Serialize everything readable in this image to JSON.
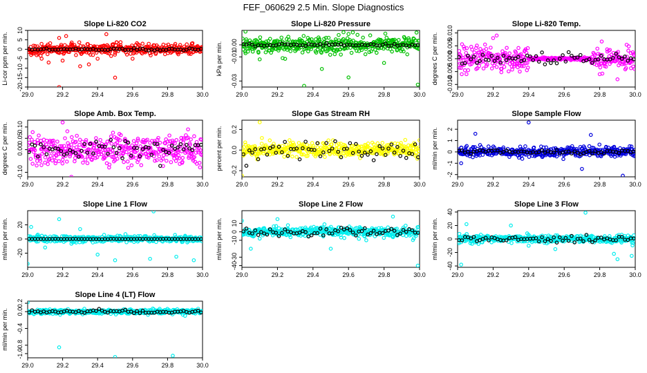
{
  "page_title": "FEF_060629  2.5 Min. Slope Diagnostics",
  "chart_data": [
    {
      "type": "scatter",
      "title": "Slope Li-820 CO2",
      "ylabel": "Li-cor ppm per min.",
      "color": "#ff0000",
      "xlim": [
        29.0,
        30.0
      ],
      "ylim": [
        -20,
        10
      ],
      "xticks": [
        "29.0",
        "29.2",
        "29.4",
        "29.6",
        "29.8",
        "30.0"
      ],
      "yticks": [
        {
          "v": -20,
          "l": "-20"
        },
        {
          "v": -15,
          "l": "-15"
        },
        {
          "v": -10,
          "l": "-10"
        },
        {
          "v": -5,
          "l": "-5"
        },
        {
          "v": 0,
          "l": "0"
        },
        {
          "v": 5,
          "l": "5"
        },
        {
          "v": 10,
          "l": "10"
        }
      ],
      "spread": 2.5,
      "outliers": [
        [
          29.02,
          -3
        ],
        [
          29.08,
          -5
        ],
        [
          29.12,
          -7
        ],
        [
          29.18,
          6
        ],
        [
          29.22,
          7
        ],
        [
          29.18,
          -20
        ],
        [
          29.4,
          -5
        ],
        [
          29.5,
          -15
        ],
        [
          29.45,
          8
        ],
        [
          29.3,
          -9
        ],
        [
          29.35,
          -8
        ],
        [
          29.6,
          -5
        ],
        [
          29.2,
          -6
        ]
      ],
      "black_spread": 0.5
    },
    {
      "type": "scatter",
      "title": "Slope Li-820 Pressure",
      "ylabel": "kPa per min.",
      "color": "#00c000",
      "xlim": [
        29.0,
        30.0
      ],
      "ylim": [
        -0.035,
        0.012
      ],
      "xticks": [
        "29.0",
        "29.2",
        "29.4",
        "29.6",
        "29.8",
        "30.0"
      ],
      "yticks": [
        {
          "v": -0.03,
          "l": "-0.03"
        },
        {
          "v": -0.01,
          "l": "-0.01"
        },
        {
          "v": 0.0,
          "l": "0.00"
        }
      ],
      "spread": 0.006,
      "outliers": [
        [
          29.35,
          -0.034
        ],
        [
          29.99,
          -0.033
        ],
        [
          29.6,
          0.009
        ],
        [
          29.02,
          0.011
        ],
        [
          29.6,
          -0.027
        ],
        [
          29.1,
          -0.012
        ],
        [
          29.45,
          -0.02
        ],
        [
          29.8,
          -0.015
        ]
      ],
      "black_spread": 0.001
    },
    {
      "type": "scatter",
      "title": "Slope Li-820 Temp.",
      "ylabel": "degrees C per min.",
      "color": "#ff00ff",
      "xlim": [
        29.0,
        30.0
      ],
      "ylim": [
        -0.011,
        0.011
      ],
      "xticks": [
        "29.0",
        "29.2",
        "29.4",
        "29.6",
        "29.8",
        "30.0"
      ],
      "yticks": [
        {
          "v": -0.01,
          "l": "-0.010"
        },
        {
          "v": -0.005,
          "l": "-0.005"
        },
        {
          "v": 0.0,
          "l": "0.000"
        },
        {
          "v": 0.005,
          "l": "0.005"
        },
        {
          "v": 0.01,
          "l": "0.010"
        }
      ],
      "spread": 0.004,
      "outliers": [
        [
          29.2,
          0.008
        ],
        [
          29.22,
          0.009
        ],
        [
          29.35,
          -0.005
        ],
        [
          29.05,
          -0.006
        ],
        [
          29.8,
          -0.006
        ],
        [
          29.9,
          -0.008
        ]
      ],
      "black_spread": 0.002,
      "flat": [
        29.4,
        29.75
      ]
    },
    {
      "type": "scatter",
      "title": "Slope Amb. Box Temp.",
      "ylabel": "degrees C per min.",
      "color": "#ff00ff",
      "xlim": [
        29.0,
        30.0
      ],
      "ylim": [
        -0.12,
        0.13
      ],
      "xticks": [
        "29.0",
        "29.2",
        "29.4",
        "29.6",
        "29.8",
        "30.0"
      ],
      "yticks": [
        {
          "v": -0.1,
          "l": "-0.10"
        },
        {
          "v": 0.0,
          "l": "0.00"
        },
        {
          "v": 0.05,
          "l": "0.05"
        },
        {
          "v": 0.1,
          "l": "0.10"
        }
      ],
      "spread": 0.06,
      "outliers": [
        [
          29.2,
          0.12
        ],
        [
          29.25,
          -0.12
        ]
      ],
      "black_spread": 0.04
    },
    {
      "type": "scatter",
      "title": "Slope Gas Stream RH",
      "ylabel": "percent per min.",
      "color": "#ffff00",
      "xlim": [
        29.0,
        30.0
      ],
      "ylim": [
        -0.26,
        0.29
      ],
      "xticks": [
        "29.0",
        "29.2",
        "29.4",
        "29.6",
        "29.8",
        "30.0"
      ],
      "yticks": [
        {
          "v": -0.2,
          "l": "-0.2"
        },
        {
          "v": 0.0,
          "l": "0.0"
        },
        {
          "v": 0.2,
          "l": "0.2"
        }
      ],
      "spread": 0.06,
      "outliers": [
        [
          29.0,
          -0.25
        ],
        [
          29.1,
          0.27
        ]
      ],
      "black_spread": 0.07
    },
    {
      "type": "scatter",
      "title": "Slope Sample Flow",
      "ylabel": "ml/min per min.",
      "color": "#0000dd",
      "xlim": [
        29.0,
        30.0
      ],
      "ylim": [
        -2.2,
        2.8
      ],
      "xticks": [
        "29.0",
        "29.2",
        "29.4",
        "29.6",
        "29.8",
        "30.0"
      ],
      "yticks": [
        {
          "v": -2,
          "l": "-2"
        },
        {
          "v": -1,
          "l": "-1"
        },
        {
          "v": 0,
          "l": "0"
        },
        {
          "v": 1,
          "l": "1"
        },
        {
          "v": 2,
          "l": "2"
        }
      ],
      "spread": 0.4,
      "outliers": [
        [
          29.4,
          2.6
        ],
        [
          29.1,
          1.6
        ],
        [
          29.7,
          -1.5
        ],
        [
          29.93,
          -2.1
        ],
        [
          29.75,
          1.5
        ],
        [
          29.02,
          -1.0
        ]
      ],
      "black_spread": 0.15
    },
    {
      "type": "scatter",
      "title": "Slope Line 1 Flow",
      "ylabel": "ml/min per min.",
      "color": "#00eeee",
      "xlim": [
        29.0,
        30.0
      ],
      "ylim": [
        -40,
        40
      ],
      "xticks": [
        "29.0",
        "29.2",
        "29.4",
        "29.6",
        "29.8",
        "30.0"
      ],
      "yticks": [
        {
          "v": -20,
          "l": "-20"
        },
        {
          "v": 0,
          "l": "0"
        },
        {
          "v": 20,
          "l": "20"
        }
      ],
      "spread": 4,
      "outliers": [
        [
          29.0,
          -35
        ],
        [
          29.02,
          17
        ],
        [
          29.18,
          28
        ],
        [
          29.72,
          39
        ],
        [
          29.7,
          -28
        ],
        [
          29.5,
          -30
        ],
        [
          29.4,
          -22
        ],
        [
          29.95,
          -30
        ],
        [
          29.85,
          -25
        ],
        [
          29.3,
          14
        ],
        [
          29.1,
          -12
        ]
      ],
      "black_spread": 0.2
    },
    {
      "type": "scatter",
      "title": "Slope Line 2 Flow",
      "ylabel": "ml/min per min.",
      "color": "#00eeee",
      "xlim": [
        29.0,
        30.0
      ],
      "ylim": [
        -42,
        25
      ],
      "xticks": [
        "29.0",
        "29.2",
        "29.4",
        "29.6",
        "29.8",
        "30.0"
      ],
      "yticks": [
        {
          "v": -40,
          "l": "-40"
        },
        {
          "v": -30,
          "l": "-30"
        },
        {
          "v": -10,
          "l": "-10"
        },
        {
          "v": 0,
          "l": "0"
        },
        {
          "v": 10,
          "l": "10"
        }
      ],
      "spread": 5,
      "outliers": [
        [
          29.99,
          -40
        ],
        [
          29.05,
          -20
        ],
        [
          29.1,
          -8
        ],
        [
          29.7,
          -10
        ],
        [
          29.5,
          -20
        ],
        [
          29.2,
          15
        ],
        [
          29.85,
          18
        ],
        [
          29.0,
          13
        ]
      ],
      "black_spread": 4
    },
    {
      "type": "scatter",
      "title": "Slope Line 3 Flow",
      "ylabel": "ml/min per min.",
      "color": "#00eeee",
      "xlim": [
        29.0,
        30.0
      ],
      "ylim": [
        -42,
        42
      ],
      "xticks": [
        "29.0",
        "29.2",
        "29.4",
        "29.6",
        "29.8",
        "30.0"
      ],
      "yticks": [
        {
          "v": -40,
          "l": "-40"
        },
        {
          "v": -20,
          "l": "-20"
        },
        {
          "v": 0,
          "l": "0"
        },
        {
          "v": 20,
          "l": "20"
        },
        {
          "v": 40,
          "l": "40"
        }
      ],
      "spread": 5,
      "outliers": [
        [
          29.02,
          -38
        ],
        [
          29.05,
          22
        ],
        [
          29.72,
          39
        ],
        [
          29.9,
          -30
        ],
        [
          29.98,
          -25
        ],
        [
          29.55,
          -15
        ],
        [
          29.3,
          20
        ],
        [
          29.88,
          -22
        ],
        [
          29.4,
          -10
        ]
      ],
      "black_spread": 4
    },
    {
      "type": "scatter",
      "title": "Slope Line 4 (LT) Flow",
      "ylabel": "ml/min per min.",
      "color": "#00eeee",
      "xlim": [
        29.0,
        30.0
      ],
      "ylim": [
        -1.1,
        0.25
      ],
      "xticks": [
        "29.0",
        "29.2",
        "29.4",
        "29.6",
        "29.8",
        "30.0"
      ],
      "yticks": [
        {
          "v": -1.0,
          "l": "-1.0"
        },
        {
          "v": -0.8,
          "l": "-0.8"
        },
        {
          "v": -0.4,
          "l": "-0.4"
        },
        {
          "v": 0.0,
          "l": "0.0"
        },
        {
          "v": 0.2,
          "l": "0.2"
        }
      ],
      "spread": 0.05,
      "outliers": [
        [
          29.18,
          -0.85
        ],
        [
          29.5,
          -1.08
        ],
        [
          29.83,
          -1.05
        ],
        [
          29.0,
          0.22
        ],
        [
          29.9,
          -0.1
        ]
      ],
      "black_spread": 0.03
    }
  ]
}
